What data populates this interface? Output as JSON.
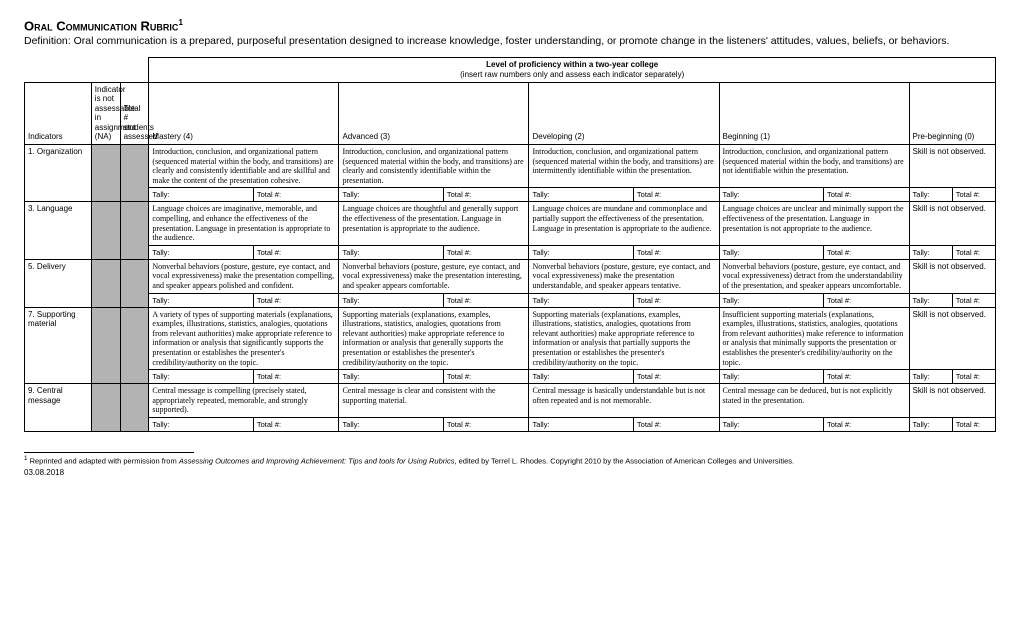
{
  "title": "Oral Communication Rubric",
  "footnote_marker": "1",
  "definition": "Definition: Oral communication is a prepared, purposeful presentation designed to increase knowledge, foster understanding, or promote change in the listeners' attitudes, values, beliefs, or behaviors.",
  "banner_line1": "Level of proficiency within a two-year college",
  "banner_line2": "(insert raw numbers only and assess each indicator separately)",
  "headers": {
    "indicators": "Indicators",
    "na": "Indicator is not assessable in assignment (NA)",
    "total": "Total # students assessed",
    "mastery": "Mastery (4)",
    "advanced": "Advanced (3)",
    "developing": "Developing (2)",
    "beginning": "Beginning (1)",
    "pre": "Pre-beginning (0)"
  },
  "tally": "Tally:",
  "totaln": "Total #:",
  "not_observed": "Skill is not observed.",
  "rows": [
    {
      "label": "1. Organization",
      "m": "Introduction, conclusion, and organizational pattern (sequenced material within the body, and transitions) are clearly and consistently identifiable and are skillful and make the content of the presentation cohesive.",
      "a": "Introduction, conclusion, and organizational pattern (sequenced material within the body, and transitions) are clearly and consistently identifiable within the presentation.",
      "d": "Introduction, conclusion, and organizational pattern (sequenced material within the body, and transitions) are intermittently identifiable within the presentation.",
      "b": "Introduction, conclusion, and organizational pattern (sequenced material within the body, and transitions) are not identifiable within the presentation."
    },
    {
      "label": "3. Language",
      "m": "Language choices are imaginative, memorable, and compelling, and enhance the effectiveness of the presentation. Language in presentation is appropriate to the audience.",
      "a": "Language choices are thoughtful and generally support the effectiveness of the presentation. Language in presentation is appropriate to the audience.",
      "d": "Language choices are mundane and commonplace and partially support the effectiveness of the presentation. Language in presentation is appropriate to the audience.",
      "b": "Language choices are unclear and minimally support the effectiveness of the presentation. Language in presentation is not appropriate to the audience."
    },
    {
      "label": "5. Delivery",
      "m": "Nonverbal behaviors (posture, gesture, eye contact, and vocal expressiveness) make the presentation compelling, and speaker appears polished and confident.",
      "a": "Nonverbal behaviors (posture, gesture, eye contact, and vocal expressiveness) make the presentation interesting, and speaker appears comfortable.",
      "d": "Nonverbal behaviors (posture, gesture, eye contact, and vocal expressiveness) make the presentation understandable, and speaker appears tentative.",
      "b": "Nonverbal behaviors (posture, gesture, eye contact, and vocal expressiveness) detract from the understandability of the presentation, and speaker appears uncomfortable."
    },
    {
      "label": "7. Supporting material",
      "m": "A variety of types of supporting materials (explanations, examples, illustrations, statistics, analogies, quotations from relevant authorities) make appropriate reference to information or analysis that significantly supports the presentation or establishes the presenter's credibility/authority on the topic.",
      "a": "Supporting materials (explanations, examples, illustrations, statistics, analogies, quotations from relevant authorities) make appropriate reference to information or analysis that generally supports the presentation or establishes the presenter's credibility/authority on the topic.",
      "d": "Supporting materials (explanations, examples, illustrations, statistics, analogies, quotations from relevant authorities) make appropriate reference to information or analysis that partially supports the presentation or establishes the presenter's credibility/authority on the topic.",
      "b": "Insufficient supporting materials (explanations, examples, illustrations, statistics, analogies, quotations from relevant authorities) make reference to information or analysis that minimally supports the presentation or establishes the presenter's credibility/authority on the topic."
    },
    {
      "label": "9. Central message",
      "m": "Central message is compelling (precisely stated, appropriately repeated, memorable, and strongly supported).",
      "a": "Central message is clear and consistent with the supporting material.",
      "d": "Central message is basically understandable but is not often repeated and is not memorable.",
      "b": "Central message can be deduced, but is not explicitly stated in the presentation."
    }
  ],
  "footnote": {
    "num": "1",
    "pre": " Reprinted and adapted with permission from ",
    "italic": "Assessing Outcomes and Improving Achievement: Tips and tools for Using Rubrics",
    "post": ", edited by Terrel L. Rhodes. Copyright 2010 by the Association of American Colleges and Universities."
  },
  "date": "03.08.2018"
}
